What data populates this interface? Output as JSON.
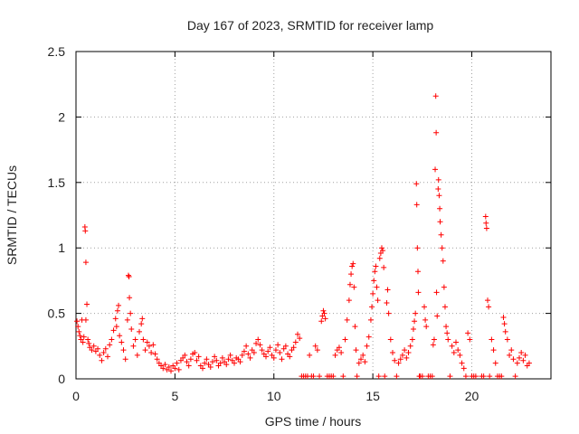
{
  "chart_data": {
    "type": "scatter",
    "title": "Day 167 of 2023, SRMTID for receiver lamp",
    "xlabel": "GPS time / hours",
    "ylabel": "SRMTID / TECUs",
    "xlim": [
      0,
      24
    ],
    "ylim": [
      0,
      2.5
    ],
    "xticks": [
      0,
      5,
      10,
      15,
      20
    ],
    "xtick_labels": [
      "0",
      "5",
      "10",
      "15",
      "20"
    ],
    "yticks": [
      0,
      0.5,
      1,
      1.5,
      2,
      2.5
    ],
    "ytick_labels": [
      "0",
      "0.5",
      "1",
      "1.5",
      "2",
      "2.5"
    ],
    "grid": true,
    "legend": "none",
    "marker": "plus",
    "series": [
      {
        "name": "SRMTID",
        "color": "#ff0000",
        "points": [
          [
            0.05,
            0.44
          ],
          [
            0.1,
            0.4
          ],
          [
            0.15,
            0.36
          ],
          [
            0.2,
            0.33
          ],
          [
            0.25,
            0.3
          ],
          [
            0.3,
            0.45
          ],
          [
            0.35,
            0.28
          ],
          [
            0.4,
            0.32
          ],
          [
            0.45,
            1.16
          ],
          [
            0.47,
            1.13
          ],
          [
            0.5,
            0.89
          ],
          [
            0.5,
            0.45
          ],
          [
            0.55,
            0.57
          ],
          [
            0.6,
            0.3
          ],
          [
            0.65,
            0.27
          ],
          [
            0.7,
            0.24
          ],
          [
            0.8,
            0.22
          ],
          [
            0.9,
            0.25
          ],
          [
            1.0,
            0.21
          ],
          [
            1.1,
            0.23
          ],
          [
            1.2,
            0.18
          ],
          [
            1.3,
            0.14
          ],
          [
            1.4,
            0.2
          ],
          [
            1.5,
            0.23
          ],
          [
            1.6,
            0.17
          ],
          [
            1.7,
            0.26
          ],
          [
            1.8,
            0.3
          ],
          [
            1.9,
            0.37
          ],
          [
            2.0,
            0.46
          ],
          [
            2.05,
            0.4
          ],
          [
            2.1,
            0.52
          ],
          [
            2.15,
            0.56
          ],
          [
            2.2,
            0.33
          ],
          [
            2.3,
            0.28
          ],
          [
            2.4,
            0.22
          ],
          [
            2.5,
            0.15
          ],
          [
            2.6,
            0.45
          ],
          [
            2.65,
            0.79
          ],
          [
            2.68,
            0.78
          ],
          [
            2.7,
            0.62
          ],
          [
            2.75,
            0.5
          ],
          [
            2.8,
            0.38
          ],
          [
            2.9,
            0.25
          ],
          [
            3.0,
            0.3
          ],
          [
            3.1,
            0.18
          ],
          [
            3.2,
            0.36
          ],
          [
            3.3,
            0.42
          ],
          [
            3.35,
            0.46
          ],
          [
            3.4,
            0.3
          ],
          [
            3.5,
            0.22
          ],
          [
            3.6,
            0.28
          ],
          [
            3.7,
            0.25
          ],
          [
            3.8,
            0.2
          ],
          [
            3.9,
            0.26
          ],
          [
            4.0,
            0.19
          ],
          [
            4.1,
            0.15
          ],
          [
            4.2,
            0.12
          ],
          [
            4.3,
            0.1
          ],
          [
            4.4,
            0.08
          ],
          [
            4.5,
            0.11
          ],
          [
            4.6,
            0.07
          ],
          [
            4.7,
            0.09
          ],
          [
            4.8,
            0.06
          ],
          [
            4.9,
            0.1
          ],
          [
            5.0,
            0.08
          ],
          [
            5.1,
            0.12
          ],
          [
            5.2,
            0.07
          ],
          [
            5.3,
            0.14
          ],
          [
            5.4,
            0.16
          ],
          [
            5.5,
            0.18
          ],
          [
            5.6,
            0.13
          ],
          [
            5.7,
            0.1
          ],
          [
            5.8,
            0.15
          ],
          [
            5.9,
            0.19
          ],
          [
            6.0,
            0.2
          ],
          [
            6.1,
            0.14
          ],
          [
            6.2,
            0.17
          ],
          [
            6.3,
            0.1
          ],
          [
            6.4,
            0.08
          ],
          [
            6.5,
            0.12
          ],
          [
            6.6,
            0.15
          ],
          [
            6.7,
            0.11
          ],
          [
            6.8,
            0.09
          ],
          [
            6.9,
            0.13
          ],
          [
            7.0,
            0.17
          ],
          [
            7.1,
            0.14
          ],
          [
            7.2,
            0.1
          ],
          [
            7.3,
            0.12
          ],
          [
            7.4,
            0.16
          ],
          [
            7.5,
            0.13
          ],
          [
            7.6,
            0.11
          ],
          [
            7.7,
            0.15
          ],
          [
            7.8,
            0.18
          ],
          [
            7.9,
            0.14
          ],
          [
            8.0,
            0.12
          ],
          [
            8.1,
            0.16
          ],
          [
            8.2,
            0.15
          ],
          [
            8.3,
            0.13
          ],
          [
            8.4,
            0.18
          ],
          [
            8.5,
            0.21
          ],
          [
            8.6,
            0.25
          ],
          [
            8.7,
            0.19
          ],
          [
            8.8,
            0.16
          ],
          [
            8.9,
            0.22
          ],
          [
            9.0,
            0.2
          ],
          [
            9.1,
            0.27
          ],
          [
            9.2,
            0.3
          ],
          [
            9.3,
            0.26
          ],
          [
            9.4,
            0.22
          ],
          [
            9.5,
            0.19
          ],
          [
            9.6,
            0.17
          ],
          [
            9.7,
            0.21
          ],
          [
            9.8,
            0.24
          ],
          [
            9.9,
            0.18
          ],
          [
            10.0,
            0.16
          ],
          [
            10.1,
            0.22
          ],
          [
            10.2,
            0.26
          ],
          [
            10.3,
            0.2
          ],
          [
            10.4,
            0.15
          ],
          [
            10.5,
            0.23
          ],
          [
            10.6,
            0.25
          ],
          [
            10.7,
            0.19
          ],
          [
            10.8,
            0.17
          ],
          [
            10.9,
            0.22
          ],
          [
            11.0,
            0.24
          ],
          [
            11.1,
            0.28
          ],
          [
            11.2,
            0.34
          ],
          [
            11.3,
            0.31
          ],
          [
            11.4,
            0.02
          ],
          [
            11.5,
            0.02
          ],
          [
            11.6,
            0.02
          ],
          [
            11.7,
            0.02
          ],
          [
            11.8,
            0.18
          ],
          [
            11.9,
            0.02
          ],
          [
            12.0,
            0.02
          ],
          [
            12.1,
            0.25
          ],
          [
            12.2,
            0.22
          ],
          [
            12.3,
            0.02
          ],
          [
            12.4,
            0.44
          ],
          [
            12.45,
            0.48
          ],
          [
            12.5,
            0.52
          ],
          [
            12.55,
            0.5
          ],
          [
            12.6,
            0.46
          ],
          [
            12.7,
            0.02
          ],
          [
            12.8,
            0.02
          ],
          [
            12.9,
            0.02
          ],
          [
            13.0,
            0.02
          ],
          [
            13.1,
            0.18
          ],
          [
            13.2,
            0.22
          ],
          [
            13.3,
            0.24
          ],
          [
            13.4,
            0.2
          ],
          [
            13.5,
            0.02
          ],
          [
            13.6,
            0.3
          ],
          [
            13.7,
            0.45
          ],
          [
            13.8,
            0.6
          ],
          [
            13.85,
            0.72
          ],
          [
            13.9,
            0.8
          ],
          [
            13.95,
            0.86
          ],
          [
            14.0,
            0.88
          ],
          [
            14.05,
            0.7
          ],
          [
            14.1,
            0.4
          ],
          [
            14.15,
            0.22
          ],
          [
            14.2,
            0.02
          ],
          [
            14.3,
            0.12
          ],
          [
            14.4,
            0.15
          ],
          [
            14.5,
            0.18
          ],
          [
            14.6,
            0.13
          ],
          [
            14.7,
            0.25
          ],
          [
            14.8,
            0.32
          ],
          [
            14.9,
            0.45
          ],
          [
            14.95,
            0.55
          ],
          [
            15.0,
            0.65
          ],
          [
            15.05,
            0.75
          ],
          [
            15.1,
            0.82
          ],
          [
            15.15,
            0.86
          ],
          [
            15.2,
            0.7
          ],
          [
            15.25,
            0.6
          ],
          [
            15.3,
            0.02
          ],
          [
            15.35,
            0.92
          ],
          [
            15.4,
            0.96
          ],
          [
            15.45,
            1.0
          ],
          [
            15.5,
            0.98
          ],
          [
            15.55,
            0.85
          ],
          [
            15.6,
            0.02
          ],
          [
            15.7,
            0.58
          ],
          [
            15.75,
            0.68
          ],
          [
            15.8,
            0.5
          ],
          [
            15.9,
            0.3
          ],
          [
            16.0,
            0.2
          ],
          [
            16.1,
            0.14
          ],
          [
            16.2,
            0.02
          ],
          [
            16.3,
            0.12
          ],
          [
            16.4,
            0.15
          ],
          [
            16.5,
            0.18
          ],
          [
            16.6,
            0.22
          ],
          [
            16.7,
            0.16
          ],
          [
            16.8,
            0.2
          ],
          [
            16.9,
            0.25
          ],
          [
            17.0,
            0.3
          ],
          [
            17.05,
            0.38
          ],
          [
            17.1,
            0.44
          ],
          [
            17.15,
            0.5
          ],
          [
            17.2,
            1.49
          ],
          [
            17.22,
            1.33
          ],
          [
            17.25,
            1.0
          ],
          [
            17.28,
            0.82
          ],
          [
            17.3,
            0.66
          ],
          [
            17.35,
            0.02
          ],
          [
            17.4,
            0.02
          ],
          [
            17.5,
            0.02
          ],
          [
            17.6,
            0.55
          ],
          [
            17.65,
            0.45
          ],
          [
            17.7,
            0.4
          ],
          [
            17.8,
            0.02
          ],
          [
            17.9,
            0.02
          ],
          [
            18.0,
            0.02
          ],
          [
            18.05,
            0.26
          ],
          [
            18.1,
            0.3
          ],
          [
            18.15,
            1.6
          ],
          [
            18.18,
            2.16
          ],
          [
            18.2,
            1.88
          ],
          [
            18.22,
            0.66
          ],
          [
            18.25,
            0.48
          ],
          [
            18.3,
            1.45
          ],
          [
            18.32,
            1.52
          ],
          [
            18.35,
            1.4
          ],
          [
            18.38,
            1.3
          ],
          [
            18.4,
            1.2
          ],
          [
            18.45,
            1.1
          ],
          [
            18.5,
            1.0
          ],
          [
            18.55,
            0.9
          ],
          [
            18.6,
            0.7
          ],
          [
            18.65,
            0.55
          ],
          [
            18.7,
            0.4
          ],
          [
            18.75,
            0.35
          ],
          [
            18.8,
            0.3
          ],
          [
            18.9,
            0.02
          ],
          [
            19.0,
            0.25
          ],
          [
            19.1,
            0.2
          ],
          [
            19.2,
            0.28
          ],
          [
            19.3,
            0.22
          ],
          [
            19.4,
            0.18
          ],
          [
            19.5,
            0.12
          ],
          [
            19.6,
            0.08
          ],
          [
            19.7,
            0.02
          ],
          [
            19.8,
            0.35
          ],
          [
            19.9,
            0.3
          ],
          [
            20.0,
            0.02
          ],
          [
            20.1,
            0.02
          ],
          [
            20.2,
            0.02
          ],
          [
            20.5,
            0.02
          ],
          [
            20.6,
            0.02
          ],
          [
            20.7,
            1.24
          ],
          [
            20.72,
            1.19
          ],
          [
            20.75,
            1.15
          ],
          [
            20.8,
            0.6
          ],
          [
            20.85,
            0.55
          ],
          [
            20.9,
            0.02
          ],
          [
            21.0,
            0.3
          ],
          [
            21.1,
            0.22
          ],
          [
            21.2,
            0.12
          ],
          [
            21.3,
            0.02
          ],
          [
            21.4,
            0.02
          ],
          [
            21.5,
            0.02
          ],
          [
            21.6,
            0.47
          ],
          [
            21.65,
            0.42
          ],
          [
            21.7,
            0.36
          ],
          [
            21.8,
            0.3
          ],
          [
            21.9,
            0.18
          ],
          [
            22.0,
            0.22
          ],
          [
            22.1,
            0.15
          ],
          [
            22.2,
            0.02
          ],
          [
            22.3,
            0.12
          ],
          [
            22.4,
            0.16
          ],
          [
            22.5,
            0.2
          ],
          [
            22.6,
            0.14
          ],
          [
            22.7,
            0.18
          ],
          [
            22.8,
            0.1
          ],
          [
            22.9,
            0.12
          ]
        ]
      }
    ]
  }
}
